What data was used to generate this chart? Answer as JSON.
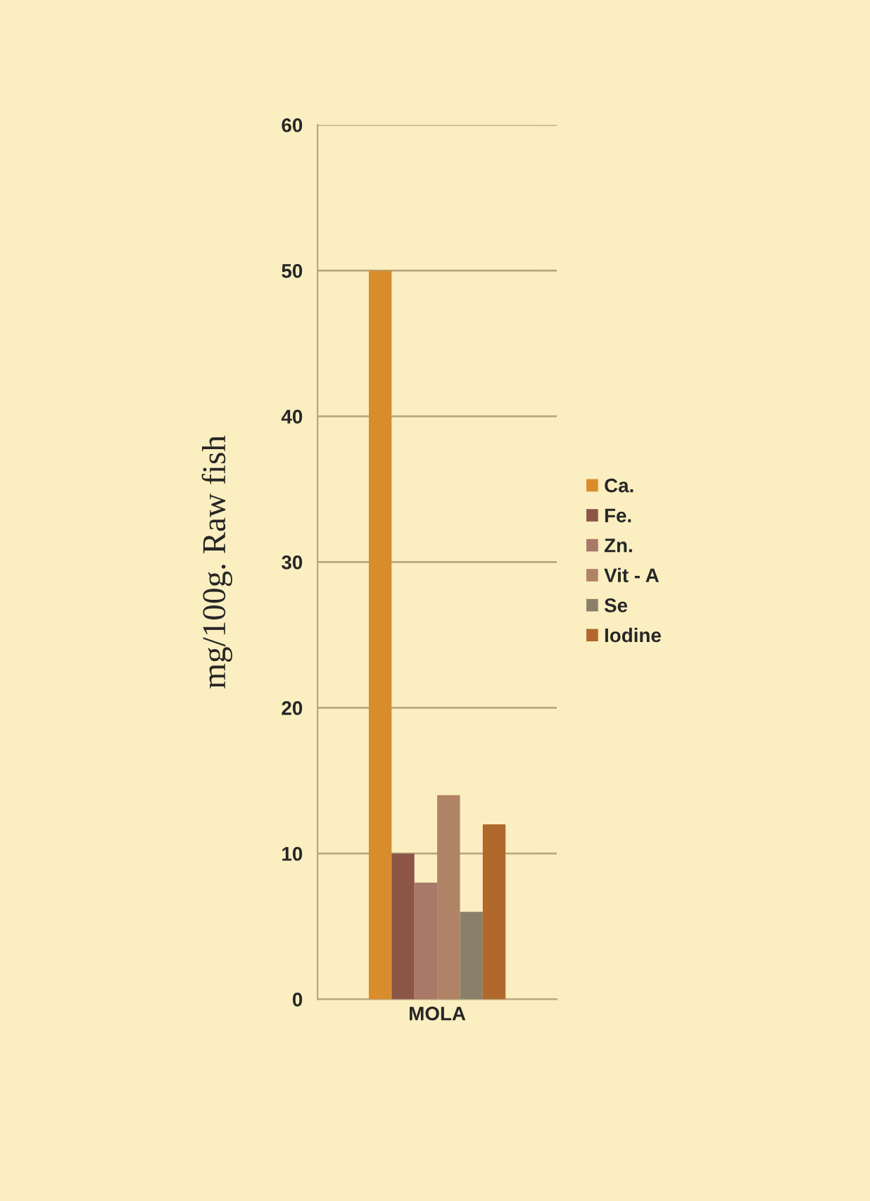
{
  "chart_data": {
    "type": "bar",
    "ylabel": "mg/100g. Raw fish",
    "categories": [
      "MOLA"
    ],
    "series": [
      {
        "name": "Ca.",
        "color": "#d98c2c",
        "values": [
          50
        ]
      },
      {
        "name": "Fe.",
        "color": "#8c5646",
        "values": [
          10
        ]
      },
      {
        "name": "Zn.",
        "color": "#a87868",
        "values": [
          8
        ]
      },
      {
        "name": "Vit - A",
        "color": "#b08266",
        "values": [
          14
        ]
      },
      {
        "name": "Se",
        "color": "#8a806a",
        "values": [
          6
        ]
      },
      {
        "name": "Iodine",
        "color": "#b0682c",
        "values": [
          12
        ]
      }
    ],
    "ylim": [
      0,
      60
    ],
    "yticks": [
      0,
      10,
      20,
      30,
      40,
      50,
      60
    ],
    "grid": "y",
    "legend": "right"
  }
}
